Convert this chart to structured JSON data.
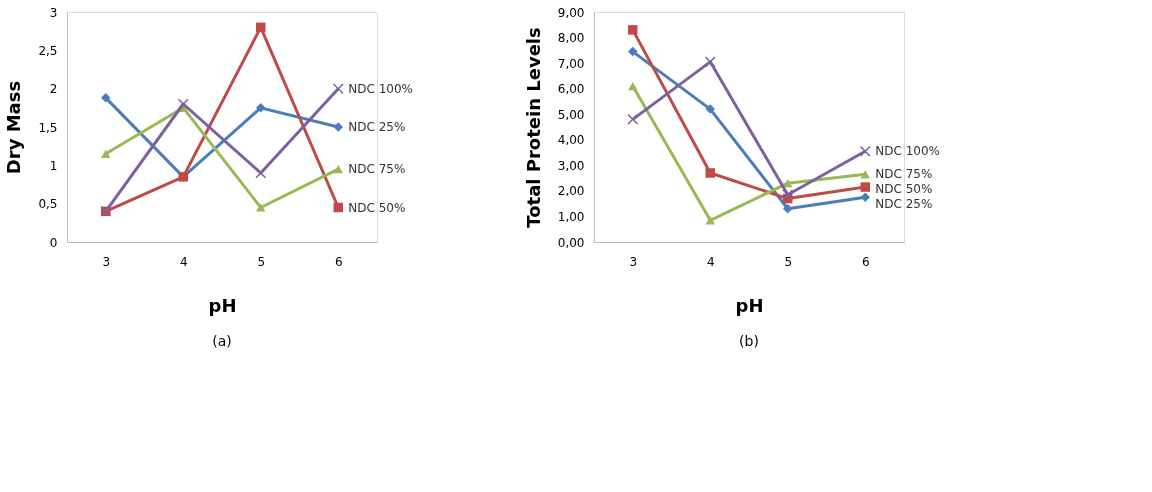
{
  "chart_data": [
    {
      "type": "line",
      "xlabel": "pH",
      "ylabel": "Dry Mass",
      "categories": [
        "3",
        "4",
        "5",
        "6"
      ],
      "ylim": [
        0,
        3
      ],
      "yticks": [
        0,
        {
          "value": 0.5,
          "label": "0,5"
        },
        1,
        {
          "value": 1.5,
          "label": "1,5"
        },
        2,
        {
          "value": 2.5,
          "label": "2,5"
        },
        3
      ],
      "grid": false,
      "line_style": "solid",
      "series": [
        {
          "name": "NDC 25%",
          "color": "#4a7ebb",
          "marker": "diamond",
          "values": [
            1.88,
            0.85,
            1.75,
            1.5
          ]
        },
        {
          "name": "NDC 50%",
          "color": "#be4b48",
          "marker": "square",
          "values": [
            0.4,
            0.85,
            2.8,
            0.45
          ]
        },
        {
          "name": "NDC 75%",
          "color": "#98b954",
          "marker": "triangle",
          "values": [
            1.15,
            1.75,
            0.45,
            0.95
          ]
        },
        {
          "name": "NDC 100%",
          "color": "#7d60a0",
          "marker": "cross",
          "values": [
            0.4,
            1.8,
            0.9,
            2.0
          ]
        }
      ],
      "annotations": [
        "(a)"
      ]
    },
    {
      "type": "line",
      "xlabel": "pH",
      "ylabel": "Total Protein Levels",
      "categories": [
        "3",
        "4",
        "5",
        "6"
      ],
      "ylim": [
        0,
        9
      ],
      "yticks": [
        {
          "value": 0,
          "label": "0,00"
        },
        {
          "value": 1,
          "label": "1,00"
        },
        {
          "value": 2,
          "label": "2,00"
        },
        {
          "value": 3,
          "label": "3,00"
        },
        {
          "value": 4,
          "label": "4,00"
        },
        {
          "value": 5,
          "label": "5,00"
        },
        {
          "value": 6,
          "label": "6,00"
        },
        {
          "value": 7,
          "label": "7,00"
        },
        {
          "value": 8,
          "label": "8,00"
        },
        {
          "value": 9,
          "label": "9,00"
        }
      ],
      "grid": false,
      "line_style": "solid",
      "series": [
        {
          "name": "NDC 25%",
          "color": "#4a7ebb",
          "marker": "diamond",
          "values": [
            7.45,
            5.2,
            1.3,
            1.75
          ]
        },
        {
          "name": "NDC 50%",
          "color": "#be4b48",
          "marker": "square",
          "values": [
            8.3,
            2.7,
            1.7,
            2.15
          ]
        },
        {
          "name": "NDC 75%",
          "color": "#98b954",
          "marker": "triangle",
          "values": [
            6.1,
            0.85,
            2.3,
            2.65
          ]
        },
        {
          "name": "NDC 100%",
          "color": "#7d60a0",
          "marker": "cross",
          "values": [
            4.8,
            7.05,
            1.85,
            3.55
          ]
        }
      ],
      "annotations": [
        "(b)"
      ]
    }
  ]
}
